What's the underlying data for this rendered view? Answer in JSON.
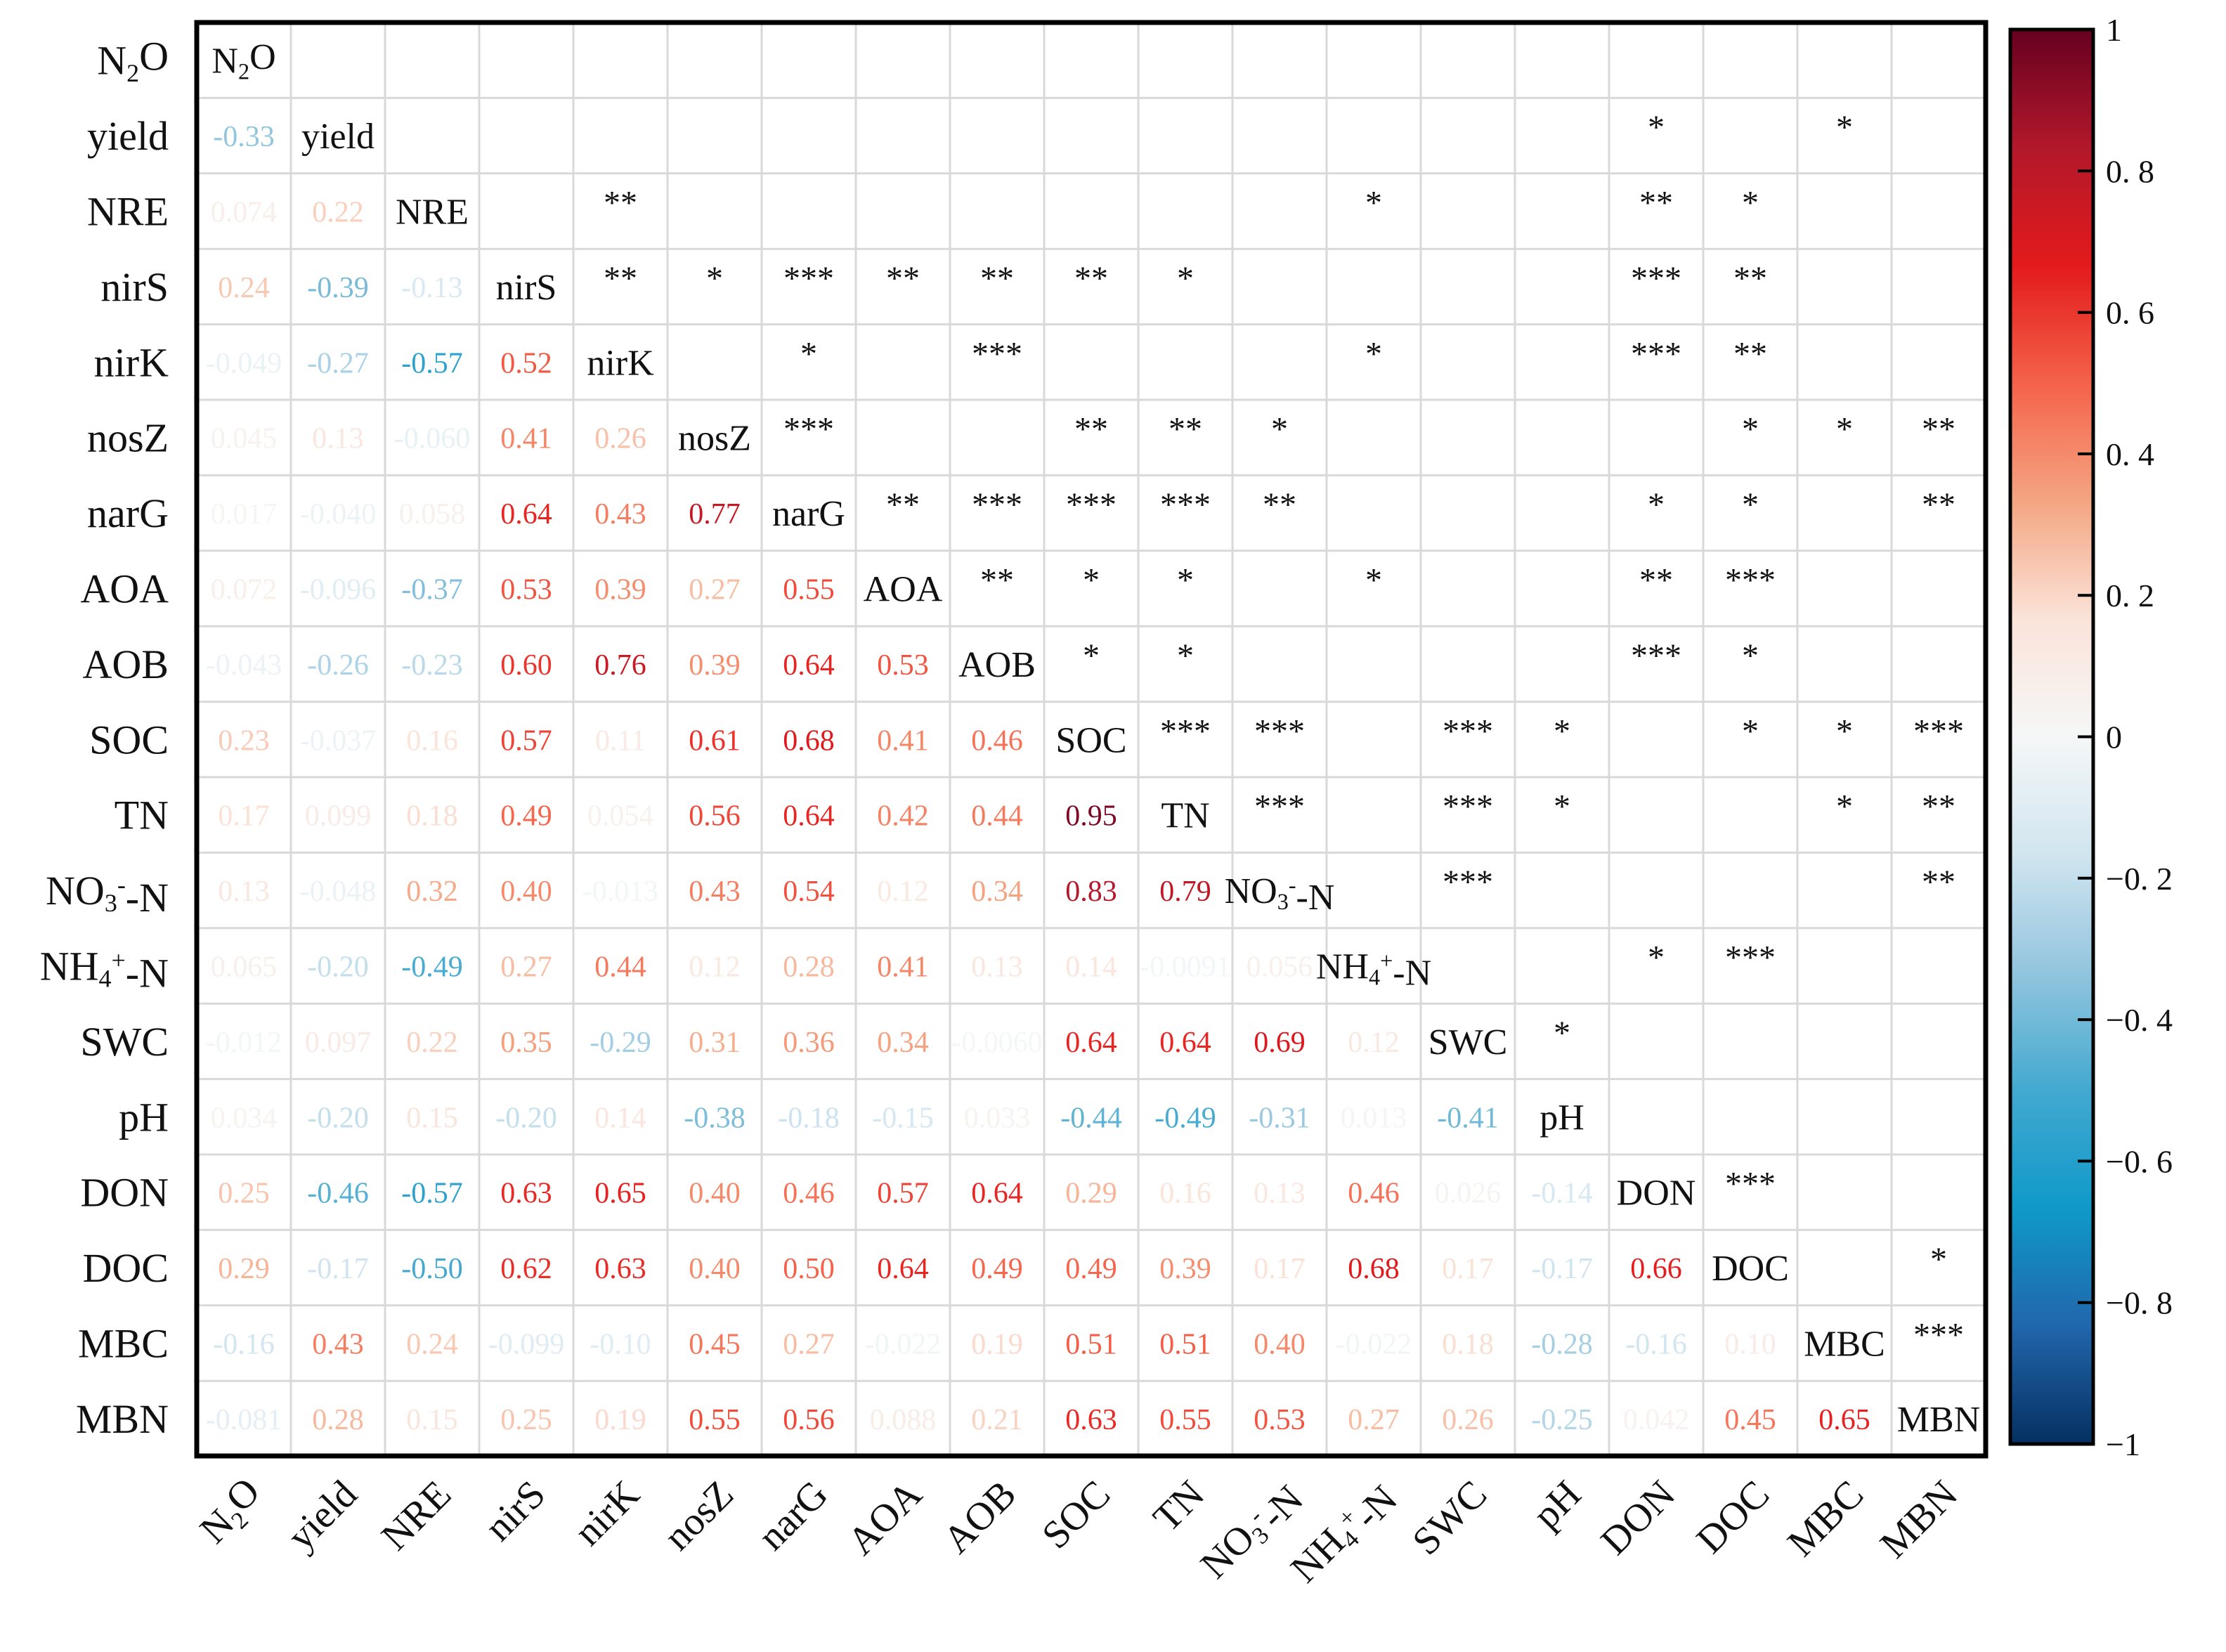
{
  "chart_data": {
    "type": "heatmap",
    "subtype": "correlation-matrix",
    "variables": [
      "N2O",
      "yield",
      "NRE",
      "nirS",
      "nirK",
      "nosZ",
      "narG",
      "AOA",
      "AOB",
      "SOC",
      "TN",
      "NO3--N",
      "NH4+-N",
      "SWC",
      "pH",
      "DON",
      "DOC",
      "MBC",
      "MBN"
    ],
    "lower_triangle_values": [
      [],
      [
        "-0.33"
      ],
      [
        "0.074",
        "0.22"
      ],
      [
        "0.24",
        "-0.39",
        "-0.13"
      ],
      [
        "-0.049",
        "-0.27",
        "-0.57",
        "0.52"
      ],
      [
        "0.045",
        "0.13",
        "-0.060",
        "0.41",
        "0.26"
      ],
      [
        "0.017",
        "-0.040",
        "0.058",
        "0.64",
        "0.43",
        "0.77"
      ],
      [
        "0.072",
        "-0.096",
        "-0.37",
        "0.53",
        "0.39",
        "0.27",
        "0.55"
      ],
      [
        "-0.043",
        "-0.26",
        "-0.23",
        "0.60",
        "0.76",
        "0.39",
        "0.64",
        "0.53"
      ],
      [
        "0.23",
        "-0.037",
        "0.16",
        "0.57",
        "0.11",
        "0.61",
        "0.68",
        "0.41",
        "0.46"
      ],
      [
        "0.17",
        "0.099",
        "0.18",
        "0.49",
        "0.054",
        "0.56",
        "0.64",
        "0.42",
        "0.44",
        "0.95"
      ],
      [
        "0.13",
        "-0.048",
        "0.32",
        "0.40",
        "-0.013",
        "0.43",
        "0.54",
        "0.12",
        "0.34",
        "0.83",
        "0.79"
      ],
      [
        "0.065",
        "-0.20",
        "-0.49",
        "0.27",
        "0.44",
        "0.12",
        "0.28",
        "0.41",
        "0.13",
        "0.14",
        "-0.0091",
        "0.056"
      ],
      [
        "-0.012",
        "0.097",
        "0.22",
        "0.35",
        "-0.29",
        "0.31",
        "0.36",
        "0.34",
        "-0.0060",
        "0.64",
        "0.64",
        "0.69",
        "0.12"
      ],
      [
        "0.034",
        "-0.20",
        "0.15",
        "-0.20",
        "0.14",
        "-0.38",
        "-0.18",
        "-0.15",
        "0.033",
        "-0.44",
        "-0.49",
        "-0.31",
        "0.013",
        "-0.41"
      ],
      [
        "0.25",
        "-0.46",
        "-0.57",
        "0.63",
        "0.65",
        "0.40",
        "0.46",
        "0.57",
        "0.64",
        "0.29",
        "0.16",
        "0.13",
        "0.46",
        "0.026",
        "-0.14"
      ],
      [
        "0.29",
        "-0.17",
        "-0.50",
        "0.62",
        "0.63",
        "0.40",
        "0.50",
        "0.64",
        "0.49",
        "0.49",
        "0.39",
        "0.17",
        "0.68",
        "0.17",
        "-0.17",
        "0.66"
      ],
      [
        "-0.16",
        "0.43",
        "0.24",
        "-0.099",
        "-0.10",
        "0.45",
        "0.27",
        "-0.022",
        "0.19",
        "0.51",
        "0.51",
        "0.40",
        "-0.022",
        "0.18",
        "-0.28",
        "-0.16",
        "0.10"
      ],
      [
        "-0.081",
        "0.28",
        "0.15",
        "0.25",
        "0.19",
        "0.55",
        "0.56",
        "0.088",
        "0.21",
        "0.63",
        "0.55",
        "0.53",
        "0.27",
        "0.26",
        "-0.25",
        "0.042",
        "0.45",
        "0.65"
      ]
    ],
    "upper_triangle_significance": [
      [
        "",
        "",
        "",
        "",
        "",
        "",
        "",
        "",
        "",
        "",
        "",
        "",
        "",
        "",
        "",
        "",
        "",
        "",
        ""
      ],
      [
        "",
        "",
        "",
        "",
        "",
        "",
        "",
        "",
        "",
        "",
        "",
        "",
        "",
        "",
        "",
        "*",
        "",
        "*",
        ""
      ],
      [
        "",
        "",
        "",
        "",
        "**",
        "",
        "",
        "",
        "",
        "",
        "",
        "",
        "*",
        "",
        "",
        "**",
        "*",
        "",
        ""
      ],
      [
        "",
        "",
        "",
        "",
        "**",
        "*",
        "***",
        "**",
        "**",
        "**",
        "*",
        "",
        "",
        "",
        "",
        "***",
        "**",
        "",
        ""
      ],
      [
        "",
        "",
        "",
        "",
        "",
        "",
        "*",
        "",
        "***",
        "",
        "",
        "",
        "*",
        "",
        "",
        "***",
        "**",
        "",
        ""
      ],
      [
        "",
        "",
        "",
        "",
        "",
        "",
        "***",
        "",
        "",
        "**",
        "**",
        "*",
        "",
        "",
        "",
        "",
        "*",
        "*",
        "**"
      ],
      [
        "",
        "",
        "",
        "",
        "",
        "",
        "",
        "**",
        "***",
        "***",
        "***",
        "**",
        "",
        "",
        "",
        "*",
        "*",
        "",
        "**"
      ],
      [
        "",
        "",
        "",
        "",
        "",
        "",
        "",
        "",
        "**",
        "*",
        "*",
        "",
        "*",
        "",
        "",
        "**",
        "***",
        "",
        ""
      ],
      [
        "",
        "",
        "",
        "",
        "",
        "",
        "",
        "",
        "",
        "*",
        "*",
        "",
        "",
        "",
        "",
        "***",
        "*",
        "",
        ""
      ],
      [
        "",
        "",
        "",
        "",
        "",
        "",
        "",
        "",
        "",
        "",
        "***",
        "***",
        "",
        "***",
        "*",
        "",
        "*",
        "*",
        "***"
      ],
      [
        "",
        "",
        "",
        "",
        "",
        "",
        "",
        "",
        "",
        "",
        "",
        "***",
        "",
        "***",
        "*",
        "",
        "",
        "*",
        "**"
      ],
      [
        "",
        "",
        "",
        "",
        "",
        "",
        "",
        "",
        "",
        "",
        "",
        "",
        "",
        "***",
        "",
        "",
        "",
        "",
        "**"
      ],
      [
        "",
        "",
        "",
        "",
        "",
        "",
        "",
        "",
        "",
        "",
        "",
        "",
        "",
        "",
        "",
        "*",
        "***",
        "",
        ""
      ],
      [
        "",
        "",
        "",
        "",
        "",
        "",
        "",
        "",
        "",
        "",
        "",
        "",
        "",
        "",
        "*",
        "",
        "",
        "",
        ""
      ],
      [
        "",
        "",
        "",
        "",
        "",
        "",
        "",
        "",
        "",
        "",
        "",
        "",
        "",
        "",
        "",
        "",
        "",
        "",
        ""
      ],
      [
        "",
        "",
        "",
        "",
        "",
        "",
        "",
        "",
        "",
        "",
        "",
        "",
        "",
        "",
        "",
        "",
        "***",
        "",
        ""
      ],
      [
        "",
        "",
        "",
        "",
        "",
        "",
        "",
        "",
        "",
        "",
        "",
        "",
        "",
        "",
        "",
        "",
        "",
        "",
        "*"
      ],
      [
        "",
        "",
        "",
        "",
        "",
        "",
        "",
        "",
        "",
        "",
        "",
        "",
        "",
        "",
        "",
        "",
        "",
        "",
        "***"
      ],
      [
        "",
        "",
        "",
        "",
        "",
        "",
        "",
        "",
        "",
        "",
        "",
        "",
        "",
        "",
        "",
        "",
        "",
        "",
        ""
      ]
    ],
    "colorbar": {
      "range": [
        -1,
        1
      ],
      "ticks": [
        "1",
        "0. 8",
        "0. 6",
        "0. 4",
        "0. 2",
        "0",
        "−0. 2",
        "−0. 4",
        "−0. 6",
        "−0. 8",
        "−1"
      ],
      "tick_values": [
        1,
        0.8,
        0.6,
        0.4,
        0.2,
        0,
        -0.2,
        -0.4,
        -0.6,
        -0.8,
        -1
      ],
      "colors": [
        "#67001f",
        "#b2182b",
        "#e31a1c",
        "#f4624a",
        "#f4a582",
        "#fbe3d9",
        "#f5f7f7",
        "#d1e5f0",
        "#92c5de",
        "#43a9d0",
        "#0f99c9",
        "#2166ac",
        "#053061"
      ]
    },
    "diagonal_style": "variable-name",
    "lower_style": "correlation-coefficient",
    "upper_style": "significance-stars"
  }
}
